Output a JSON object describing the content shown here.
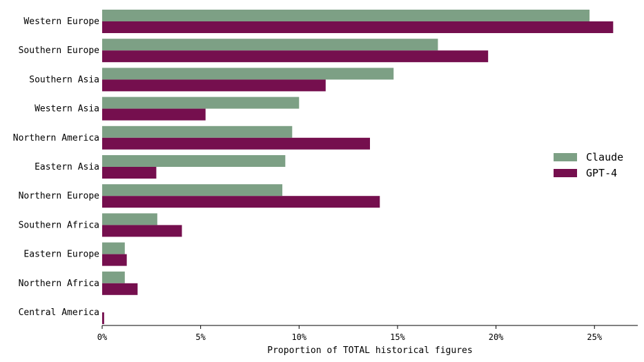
{
  "chart_data": {
    "type": "bar",
    "orientation": "horizontal",
    "title": "",
    "xlabel": "Proportion of TOTAL historical figures",
    "ylabel": "",
    "xlim": [
      0,
      27.2
    ],
    "x_ticks": [
      0,
      5,
      10,
      15,
      20,
      25
    ],
    "x_tick_format": "{v}%",
    "grid": false,
    "legend_position": "right",
    "categories": [
      "Western Europe",
      "Southern Europe",
      "Southern Asia",
      "Western Asia",
      "Northern America",
      "Eastern Asia",
      "Northern Europe",
      "Southern Africa",
      "Eastern Europe",
      "Northern Africa",
      "Central America"
    ],
    "series": [
      {
        "name": "Claude",
        "color": "#7da085",
        "values": [
          24.75,
          17.05,
          14.8,
          10.0,
          9.65,
          9.3,
          9.15,
          2.8,
          1.15,
          1.15,
          0.0
        ]
      },
      {
        "name": "GPT-4",
        "color": "#750f4e",
        "values": [
          25.95,
          19.6,
          11.35,
          5.25,
          13.6,
          2.75,
          14.1,
          4.05,
          1.25,
          1.8,
          0.1
        ]
      }
    ]
  }
}
